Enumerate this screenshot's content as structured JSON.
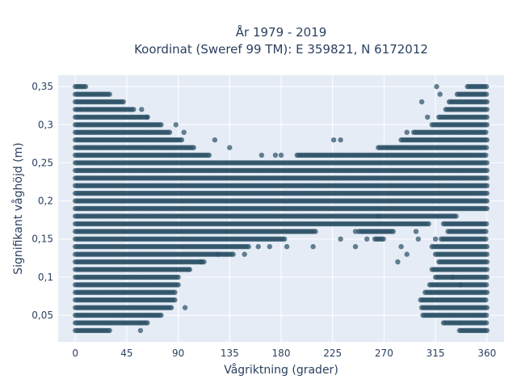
{
  "chart_data": {
    "type": "scatter",
    "title_line1": "År 1979 - 2019",
    "title_line2": "Koordinat (Sweref 99 TM): E 359821, N 6172012",
    "xlabel": "Vågriktning (grader)",
    "ylabel": "Signifikant våghöjd (m)",
    "xlim": [
      -15,
      375
    ],
    "ylim": [
      0.015,
      0.365
    ],
    "xticks": [
      0,
      45,
      90,
      135,
      180,
      225,
      270,
      315,
      360
    ],
    "xtick_labels": [
      "0",
      "45",
      "90",
      "135",
      "180",
      "225",
      "270",
      "315",
      "360"
    ],
    "yticks": [
      0.05,
      0.1,
      0.15,
      0.2,
      0.25,
      0.3,
      0.35
    ],
    "ytick_labels": [
      "0,05",
      "0,1",
      "0,15",
      "0,2",
      "0,25",
      "0,3",
      "0,35"
    ],
    "grid": true,
    "background_color": "#e5ecf6",
    "marker_color": "#2e5266",
    "height_levels": [
      0.03,
      0.04,
      0.05,
      0.06,
      0.07,
      0.08,
      0.09,
      0.1,
      0.11,
      0.12,
      0.13,
      0.14,
      0.15,
      0.16,
      0.17,
      0.18,
      0.19,
      0.2,
      0.21,
      0.22,
      0.23,
      0.24,
      0.25,
      0.26,
      0.27,
      0.28,
      0.29,
      0.3,
      0.31,
      0.32,
      0.33,
      0.34,
      0.35
    ],
    "series": [
      {
        "values": [
          {
            "y": 0.03,
            "ranges": [
              [
                0,
                30
              ],
              [
                336,
                360
              ]
            ]
          },
          {
            "y": 0.04,
            "ranges": [
              [
                0,
                63
              ],
              [
                322,
                360
              ]
            ]
          },
          {
            "y": 0.05,
            "ranges": [
              [
                0,
                76
              ],
              [
                304,
                360
              ]
            ]
          },
          {
            "y": 0.06,
            "ranges": [
              [
                0,
                84
              ],
              [
                303,
                360
              ]
            ]
          },
          {
            "y": 0.07,
            "ranges": [
              [
                0,
                88
              ],
              [
                302,
                360
              ]
            ]
          },
          {
            "y": 0.08,
            "ranges": [
              [
                0,
                87
              ],
              [
                306,
                360
              ]
            ]
          },
          {
            "y": 0.09,
            "ranges": [
              [
                0,
                90
              ],
              [
                310,
                360
              ]
            ]
          },
          {
            "y": 0.1,
            "ranges": [
              [
                0,
                90
              ],
              [
                315,
                360
              ]
            ]
          },
          {
            "y": 0.11,
            "ranges": [
              [
                0,
                100
              ],
              [
                312,
                360
              ]
            ]
          },
          {
            "y": 0.12,
            "ranges": [
              [
                0,
                113
              ],
              [
                318,
                360
              ]
            ]
          },
          {
            "y": 0.13,
            "ranges": [
              [
                0,
                138
              ],
              [
                315,
                360
              ]
            ]
          },
          {
            "y": 0.14,
            "ranges": [
              [
                0,
                152
              ],
              [
                312,
                360
              ]
            ]
          },
          {
            "y": 0.15,
            "ranges": [
              [
                0,
                184
              ],
              [
                262,
                270
              ],
              [
                320,
                360
              ]
            ]
          },
          {
            "y": 0.16,
            "ranges": [
              [
                0,
                210
              ],
              [
                248,
                278
              ],
              [
                326,
                360
              ]
            ]
          },
          {
            "y": 0.17,
            "ranges": [
              [
                0,
                310
              ],
              [
                322,
                360
              ]
            ]
          },
          {
            "y": 0.18,
            "ranges": [
              [
                0,
                333
              ]
            ]
          },
          {
            "y": 0.19,
            "ranges": [
              [
                0,
                360
              ]
            ]
          },
          {
            "y": 0.2,
            "ranges": [
              [
                0,
                360
              ]
            ]
          },
          {
            "y": 0.21,
            "ranges": [
              [
                0,
                360
              ]
            ]
          },
          {
            "y": 0.22,
            "ranges": [
              [
                0,
                360
              ]
            ]
          },
          {
            "y": 0.23,
            "ranges": [
              [
                0,
                360
              ]
            ]
          },
          {
            "y": 0.24,
            "ranges": [
              [
                0,
                360
              ]
            ]
          },
          {
            "y": 0.25,
            "ranges": [
              [
                0,
                360
              ]
            ]
          },
          {
            "y": 0.26,
            "ranges": [
              [
                0,
                118
              ],
              [
                194,
                360
              ]
            ]
          },
          {
            "y": 0.27,
            "ranges": [
              [
                0,
                104
              ],
              [
                265,
                360
              ]
            ]
          },
          {
            "y": 0.28,
            "ranges": [
              [
                0,
                93
              ],
              [
                285,
                360
              ]
            ]
          },
          {
            "y": 0.29,
            "ranges": [
              [
                0,
                83
              ],
              [
                296,
                360
              ]
            ]
          },
          {
            "y": 0.3,
            "ranges": [
              [
                0,
                75
              ],
              [
                312,
                360
              ]
            ]
          },
          {
            "y": 0.31,
            "ranges": [
              [
                0,
                64
              ],
              [
                318,
                360
              ]
            ]
          },
          {
            "y": 0.32,
            "ranges": [
              [
                0,
                52
              ],
              [
                324,
                360
              ]
            ]
          },
          {
            "y": 0.33,
            "ranges": [
              [
                0,
                43
              ],
              [
                327,
                360
              ]
            ]
          },
          {
            "y": 0.34,
            "ranges": [
              [
                0,
                30
              ],
              [
                334,
                360
              ]
            ]
          },
          {
            "y": 0.35,
            "ranges": [
              [
                0,
                10
              ],
              [
                343,
                360
              ]
            ]
          }
        ],
        "scattered_points": [
          {
            "x": 57,
            "y": 0.03
          },
          {
            "x": 96,
            "y": 0.06
          },
          {
            "x": 58,
            "y": 0.32
          },
          {
            "x": 63,
            "y": 0.31
          },
          {
            "x": 88,
            "y": 0.3
          },
          {
            "x": 95,
            "y": 0.29
          },
          {
            "x": 122,
            "y": 0.28
          },
          {
            "x": 135,
            "y": 0.27
          },
          {
            "x": 163,
            "y": 0.26
          },
          {
            "x": 175,
            "y": 0.26
          },
          {
            "x": 180,
            "y": 0.26
          },
          {
            "x": 226,
            "y": 0.28
          },
          {
            "x": 232,
            "y": 0.28
          },
          {
            "x": 290,
            "y": 0.29
          },
          {
            "x": 308,
            "y": 0.31
          },
          {
            "x": 319,
            "y": 0.34
          },
          {
            "x": 316,
            "y": 0.35
          },
          {
            "x": 303,
            "y": 0.33
          },
          {
            "x": 170,
            "y": 0.14
          },
          {
            "x": 185,
            "y": 0.14
          },
          {
            "x": 208,
            "y": 0.14
          },
          {
            "x": 232,
            "y": 0.15
          },
          {
            "x": 245,
            "y": 0.14
          },
          {
            "x": 255,
            "y": 0.15
          },
          {
            "x": 282,
            "y": 0.12
          },
          {
            "x": 290,
            "y": 0.13
          },
          {
            "x": 300,
            "y": 0.15
          },
          {
            "x": 285,
            "y": 0.14
          },
          {
            "x": 148,
            "y": 0.13
          },
          {
            "x": 160,
            "y": 0.14
          },
          {
            "x": 125,
            "y": 0.13
          },
          {
            "x": 110,
            "y": 0.12
          },
          {
            "x": 100,
            "y": 0.11
          },
          {
            "x": 245,
            "y": 0.16
          },
          {
            "x": 265,
            "y": 0.18
          },
          {
            "x": 298,
            "y": 0.16
          },
          {
            "x": 315,
            "y": 0.15
          },
          {
            "x": 330,
            "y": 0.1
          },
          {
            "x": 337,
            "y": 0.09
          }
        ]
      }
    ]
  }
}
